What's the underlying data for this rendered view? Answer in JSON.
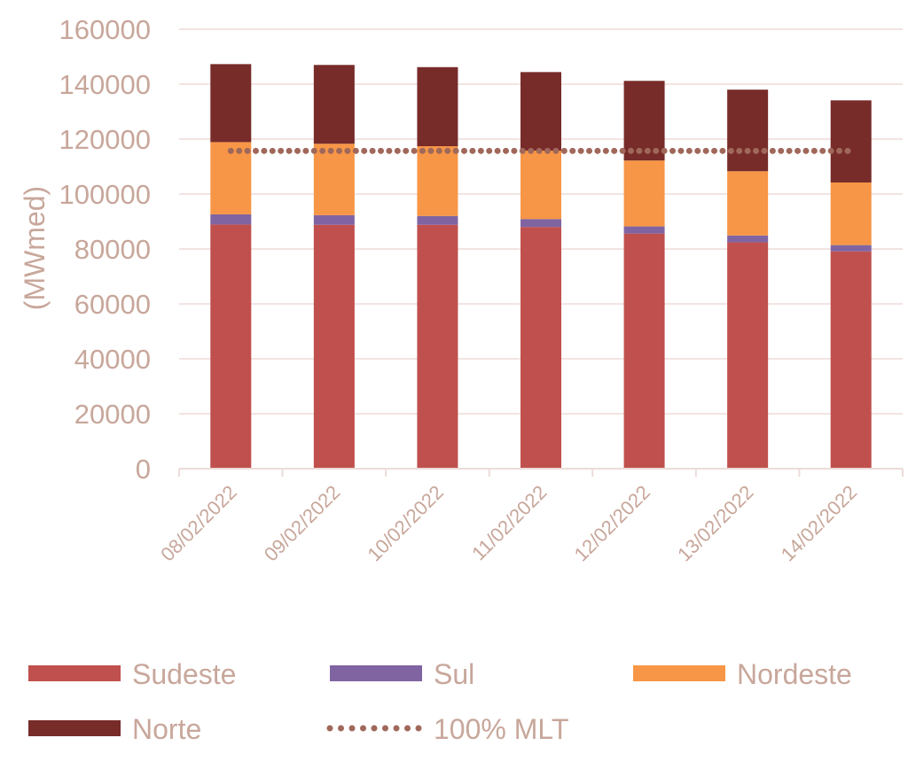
{
  "chart_data": {
    "type": "bar",
    "stacked": true,
    "title": "",
    "xlabel": "",
    "ylabel": "(MWmed)",
    "ylim": [
      0,
      160000
    ],
    "yticks": [
      0,
      20000,
      40000,
      60000,
      80000,
      100000,
      120000,
      140000,
      160000
    ],
    "ytick_labels": [
      "0",
      "20000",
      "40000",
      "60000",
      "80000",
      "100000",
      "120000",
      "140000",
      "160000"
    ],
    "grid": true,
    "categories": [
      "08/02/2022",
      "09/02/2022",
      "10/02/2022",
      "11/02/2022",
      "12/02/2022",
      "13/02/2022",
      "14/02/2022"
    ],
    "series": [
      {
        "name": "Sudeste",
        "color": "#c0504d",
        "values": [
          88900,
          88800,
          88800,
          88000,
          85600,
          82400,
          79100
        ]
      },
      {
        "name": "Sul",
        "color": "#8064a2",
        "values": [
          3700,
          3500,
          3200,
          2900,
          2600,
          2500,
          2300
        ]
      },
      {
        "name": "Nordeste",
        "color": "#f79646",
        "values": [
          26300,
          26000,
          25400,
          24900,
          24000,
          23400,
          22800
        ]
      },
      {
        "name": "Norte",
        "color": "#772c2a",
        "values": [
          28400,
          28700,
          28800,
          28600,
          29000,
          29700,
          29900
        ]
      }
    ],
    "reference_line": {
      "name": "100% MLT",
      "color": "#a0685a",
      "style": "dotted",
      "value": 115700
    },
    "legend_position": "bottom"
  }
}
